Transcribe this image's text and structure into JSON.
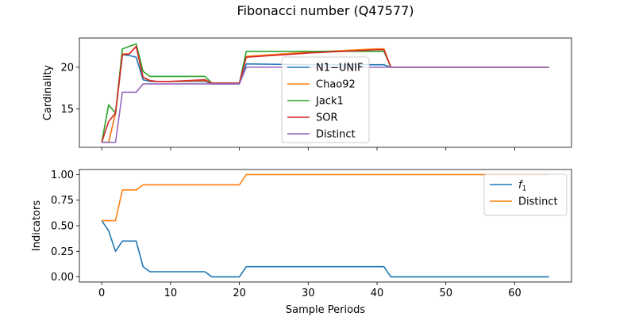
{
  "figure": {
    "title": "Fibonacci number (Q47577)"
  },
  "chart_data": [
    {
      "type": "line",
      "panel": "top",
      "title": "",
      "xlabel": "",
      "ylabel": "Cardinality",
      "xlim": [
        -3.25,
        68.25
      ],
      "ylim": [
        10.4,
        23.5
      ],
      "xticks": [
        0,
        10,
        20,
        30,
        40,
        50,
        60
      ],
      "show_xtick_labels": false,
      "yticks": [
        15,
        20
      ],
      "grid": false,
      "legend_position": "center",
      "series": [
        {
          "name": "N1−UNIF",
          "color": "#1f77b4",
          "x": [
            0,
            1,
            2,
            3,
            4,
            5,
            6,
            7,
            8,
            10,
            13,
            15,
            16,
            20,
            21,
            30,
            40,
            41,
            42,
            65
          ],
          "y": [
            11,
            11,
            14.5,
            21.5,
            21.4,
            21.2,
            18.5,
            18.3,
            18.3,
            18.3,
            18.3,
            18.3,
            18.0,
            18.0,
            20.4,
            20.3,
            20.3,
            20.3,
            20.0,
            20.0
          ]
        },
        {
          "name": "Chao92",
          "color": "#ff7f0e",
          "x": [
            0,
            1,
            2,
            3,
            4,
            5,
            6,
            7,
            8,
            10,
            15,
            16,
            20,
            21,
            30,
            40,
            41,
            42,
            65
          ],
          "y": [
            11,
            11,
            14.5,
            21.6,
            21.6,
            22.5,
            18.8,
            18.4,
            18.3,
            18.3,
            18.4,
            18.1,
            18.1,
            21.3,
            21.8,
            22.2,
            22.2,
            20.0,
            20.0
          ]
        },
        {
          "name": "Jack1",
          "color": "#2ca02c",
          "x": [
            0,
            1,
            2,
            3,
            4,
            5,
            6,
            7,
            10,
            15,
            16,
            20,
            21,
            30,
            41,
            42,
            65
          ],
          "y": [
            11,
            15.5,
            14.5,
            22.2,
            22.5,
            22.8,
            19.5,
            18.9,
            18.9,
            18.9,
            18.1,
            18.1,
            21.9,
            21.9,
            21.9,
            20.0,
            20.0
          ]
        },
        {
          "name": "SOR",
          "color": "#d62728",
          "x": [
            0,
            1,
            2,
            3,
            4,
            5,
            6,
            7,
            8,
            10,
            15,
            16,
            20,
            21,
            30,
            40,
            41,
            42,
            65
          ],
          "y": [
            11,
            13.5,
            14.5,
            21.5,
            21.6,
            22.5,
            18.8,
            18.4,
            18.3,
            18.3,
            18.5,
            18.1,
            18.1,
            21.2,
            21.7,
            22.1,
            22.1,
            20.0,
            20.0
          ]
        },
        {
          "name": "Distinct",
          "color": "#9467bd",
          "x": [
            0,
            2,
            3,
            5,
            6,
            20,
            21,
            65
          ],
          "y": [
            11,
            11,
            17,
            17,
            18,
            18,
            20,
            20
          ]
        }
      ]
    },
    {
      "type": "line",
      "panel": "bottom",
      "title": "",
      "xlabel": "Sample Periods",
      "ylabel": "Indicators",
      "xlim": [
        -3.25,
        68.25
      ],
      "ylim": [
        -0.05,
        1.05
      ],
      "xticks": [
        0,
        10,
        20,
        30,
        40,
        50,
        60
      ],
      "yticks": [
        0.0,
        0.25,
        0.5,
        0.75,
        1.0
      ],
      "ytick_labels": [
        "0.00",
        "0.25",
        "0.50",
        "0.75",
        "1.00"
      ],
      "grid": false,
      "legend_position": "top-right",
      "series": [
        {
          "name": "f",
          "name_subscript": "1",
          "color": "#1f77b4",
          "x": [
            0,
            1,
            2,
            3,
            5,
            6,
            7,
            15,
            16,
            20,
            21,
            41,
            42,
            65
          ],
          "y": [
            0.55,
            0.45,
            0.25,
            0.35,
            0.35,
            0.1,
            0.05,
            0.05,
            0.0,
            0.0,
            0.1,
            0.1,
            0.0,
            0.0
          ]
        },
        {
          "name": "Distinct",
          "color": "#ff7f0e",
          "x": [
            0,
            2,
            3,
            5,
            6,
            20,
            21,
            65
          ],
          "y": [
            0.55,
            0.55,
            0.85,
            0.85,
            0.9,
            0.9,
            1.0,
            1.0
          ]
        }
      ]
    }
  ]
}
